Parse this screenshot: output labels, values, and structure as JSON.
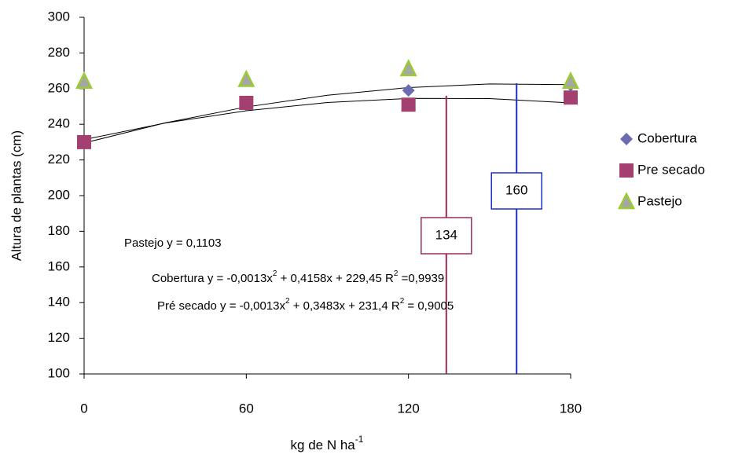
{
  "chart_data": {
    "type": "scatter",
    "x_label": [
      "kg de N ha",
      "-1"
    ],
    "y_label": "Altura de plantas (cm)",
    "x": [
      0,
      60,
      120,
      180
    ],
    "series": [
      {
        "name": "Cobertura",
        "color": "#6b6bb2",
        "marker": "diamond",
        "values": [
          230,
          251,
          259,
          262
        ]
      },
      {
        "name": "Pre secado",
        "color": "#a3406f",
        "marker": "square",
        "values": [
          230,
          252,
          251,
          255
        ]
      },
      {
        "name": "Pastejo",
        "color": "#99cc33",
        "marker": "triangle",
        "values": [
          264,
          265,
          271,
          264
        ]
      }
    ],
    "trendlines": [
      {
        "x": [
          0,
          30,
          60,
          90,
          120,
          150,
          180
        ],
        "values": [
          229.5,
          240.8,
          249.7,
          256.3,
          260.6,
          262.6,
          262.2
        ]
      },
      {
        "x": [
          0,
          30,
          60,
          90,
          120,
          150,
          180
        ],
        "values": [
          231.4,
          240.7,
          247.6,
          252.2,
          254.5,
          254.4,
          252.0
        ]
      }
    ],
    "reference_lines": [
      {
        "x": 134,
        "top": 256,
        "color": "#9b2d5a"
      },
      {
        "x": 160,
        "top": 263,
        "color": "#1f2fc8"
      }
    ],
    "annotations": [
      [
        "Pastejo y =  0,1103"
      ],
      [
        "Cobertura y = -0,0013x",
        "2",
        " + 0,4158x + 229,45 R",
        "2",
        " =0,9939"
      ],
      [
        "Pré secado y = -0,0013x",
        "2",
        " + 0,3483x + 231,4 R",
        "2",
        " = 0,9005"
      ]
    ],
    "xlim": [
      0,
      180
    ],
    "xticks": [
      0,
      60,
      120,
      180
    ],
    "ylim": [
      100,
      300
    ],
    "yticks": [
      100,
      120,
      140,
      160,
      180,
      200,
      220,
      240,
      260,
      280,
      300
    ]
  }
}
